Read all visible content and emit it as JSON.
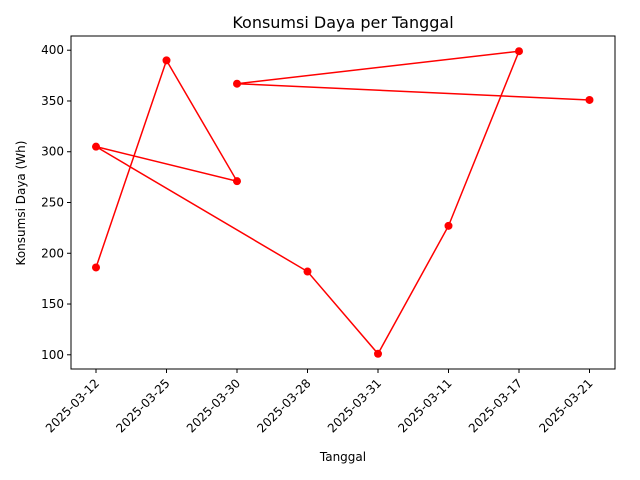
{
  "chart_data": {
    "type": "line",
    "title": "Konsumsi Daya per Tanggal",
    "xlabel": "Tanggal",
    "ylabel": "Konsumsi Daya (Wh)",
    "categories": [
      "2025-03-12",
      "2025-03-25",
      "2025-03-30",
      "2025-03-28",
      "2025-03-31",
      "2025-03-11",
      "2025-03-17",
      "2025-03-21"
    ],
    "ylim": [
      86,
      414
    ],
    "yticks": [
      100,
      150,
      200,
      250,
      300,
      350,
      400
    ],
    "grid": false,
    "series": [
      {
        "color": "#ff0000",
        "marker": "circle",
        "points": [
          {
            "x": "2025-03-12",
            "y": 186
          },
          {
            "x": "2025-03-25",
            "y": 390
          },
          {
            "x": "2025-03-30",
            "y": 271
          },
          {
            "x": "2025-03-12",
            "y": 305
          },
          {
            "x": "2025-03-28",
            "y": 182
          },
          {
            "x": "2025-03-31",
            "y": 101
          },
          {
            "x": "2025-03-11",
            "y": 227
          },
          {
            "x": "2025-03-17",
            "y": 399
          },
          {
            "x": "2025-03-30",
            "y": 367
          },
          {
            "x": "2025-03-21",
            "y": 351
          }
        ]
      }
    ]
  }
}
